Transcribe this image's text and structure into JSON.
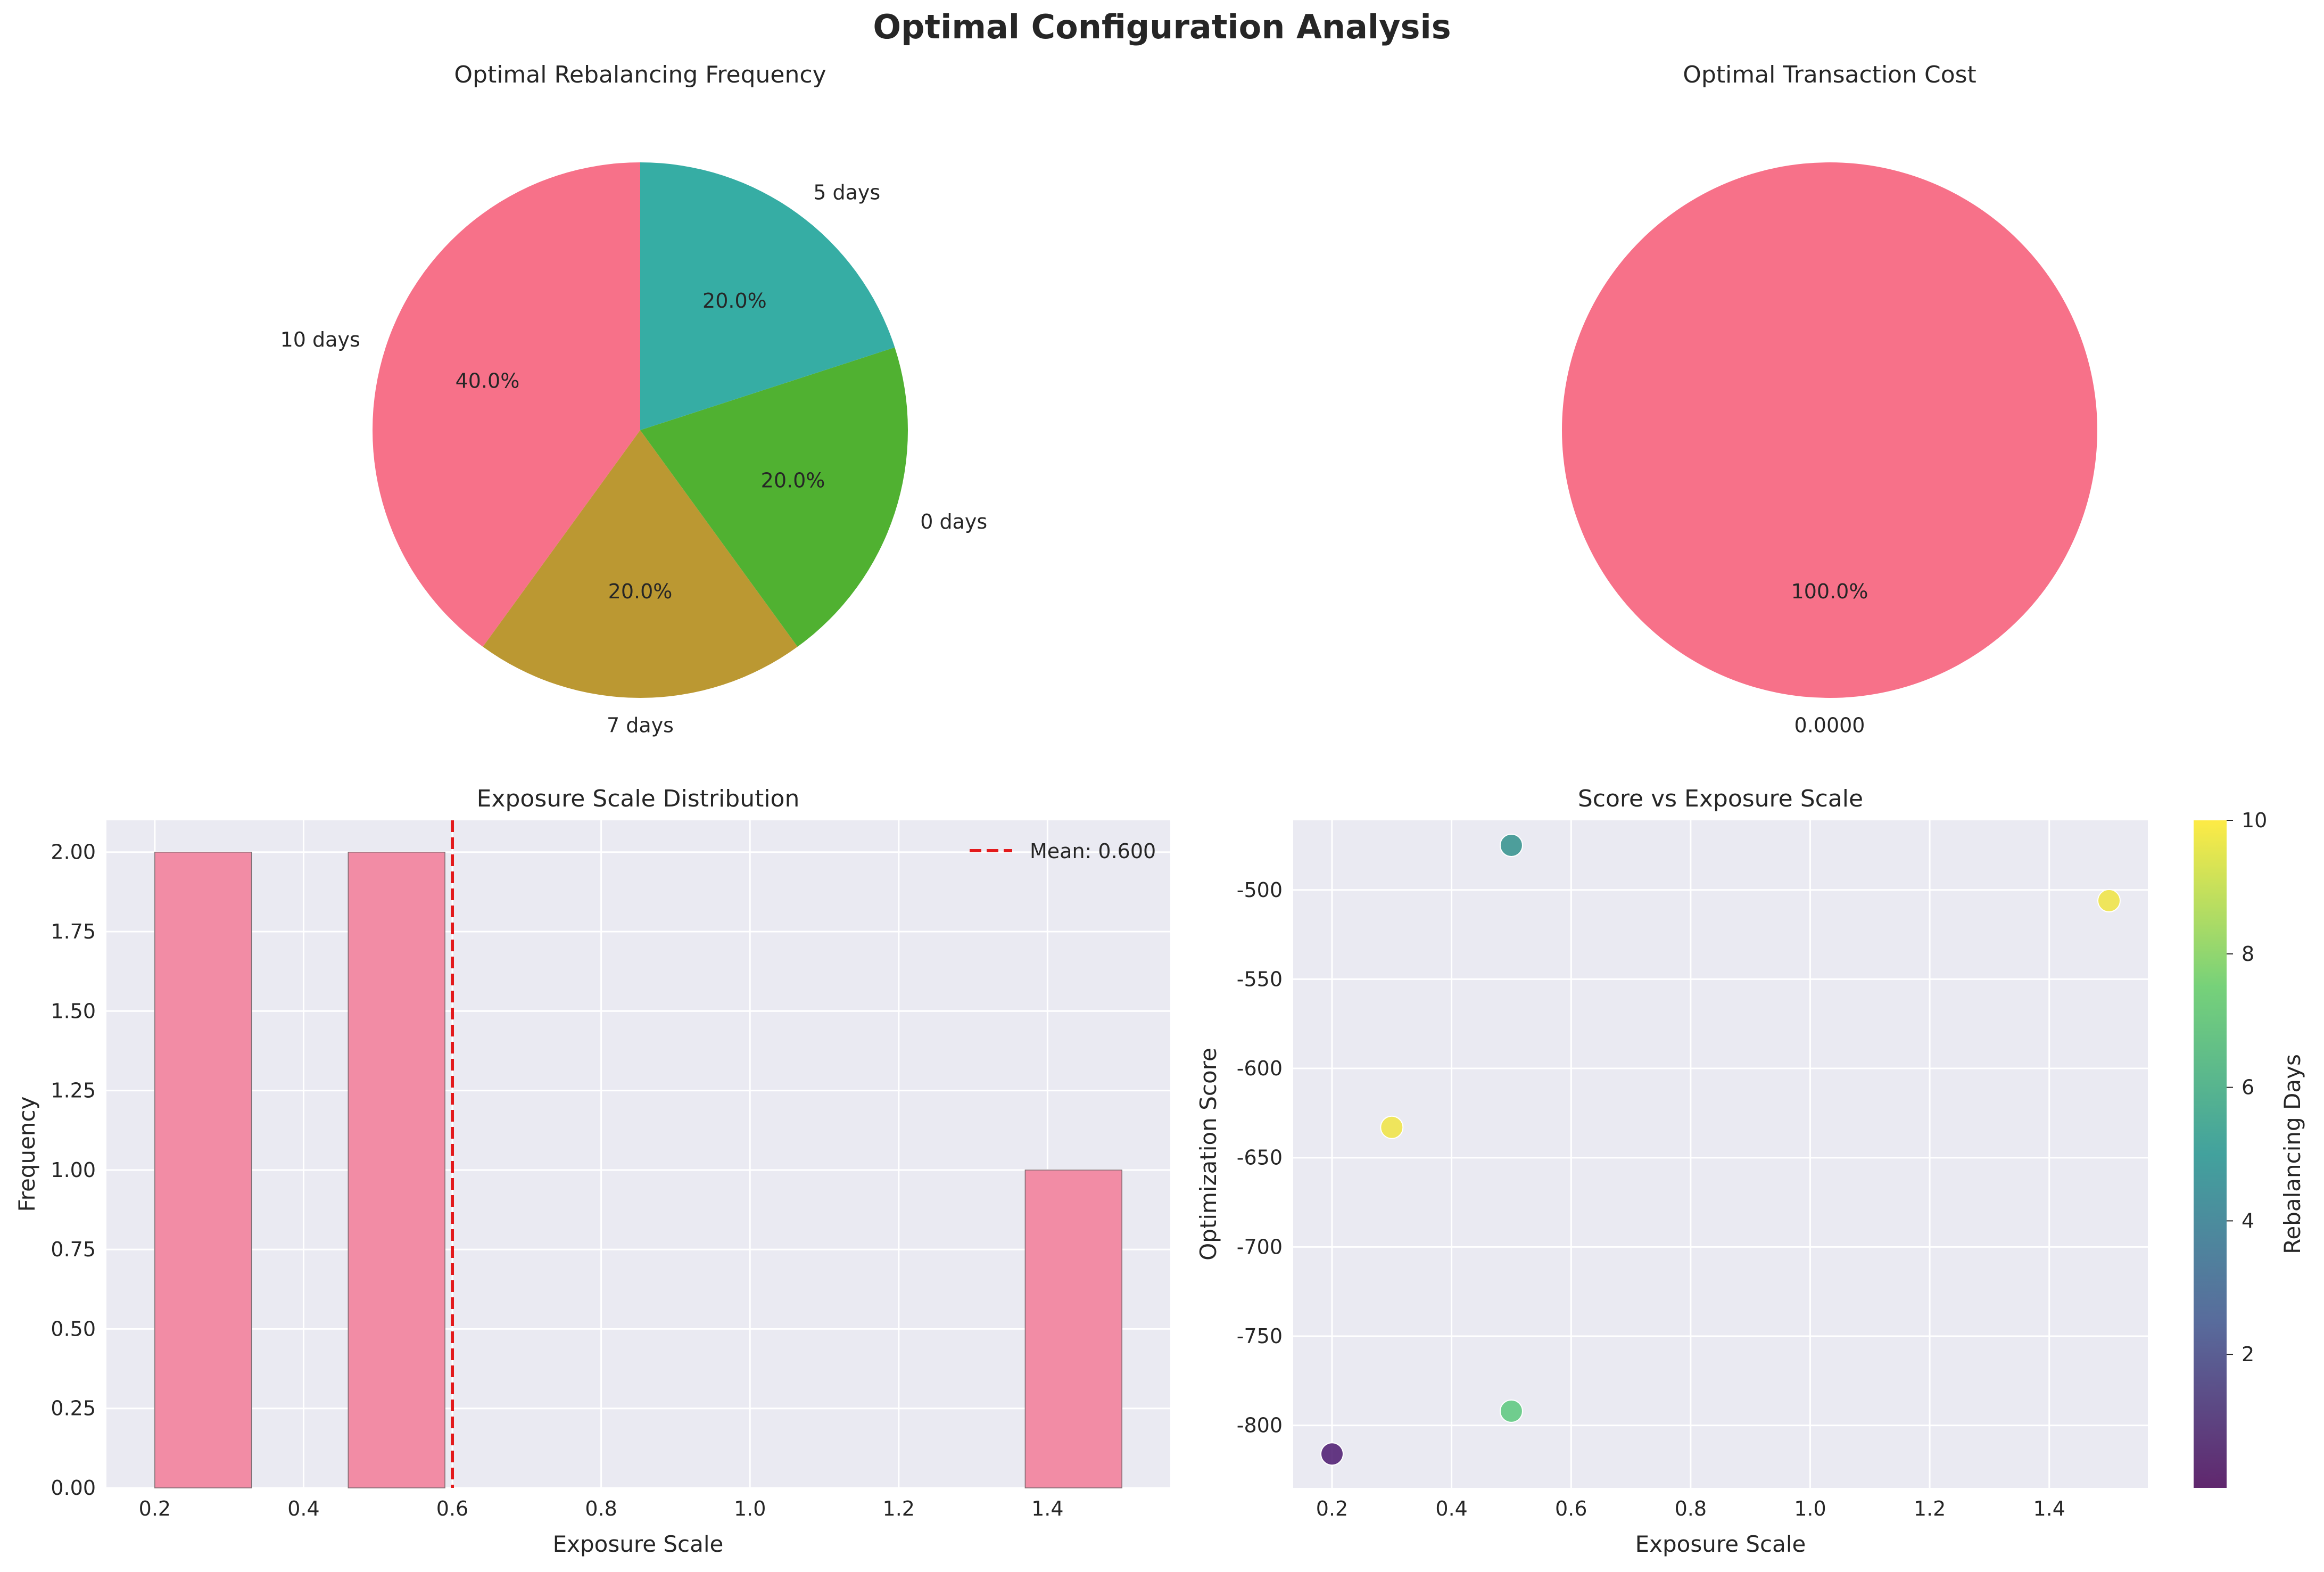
{
  "title": "Optimal Configuration Analysis",
  "chart_data": [
    {
      "type": "pie",
      "title": "Optimal Rebalancing Frequency",
      "slices": [
        {
          "label": "10 days",
          "value": 40.0,
          "pct_label": "40.0%",
          "color": "#f77189"
        },
        {
          "label": "7 days",
          "value": 20.0,
          "pct_label": "20.0%",
          "color": "#bb9832"
        },
        {
          "label": "0 days",
          "value": 20.0,
          "pct_label": "20.0%",
          "color": "#50b131"
        },
        {
          "label": "5 days",
          "value": 20.0,
          "pct_label": "20.0%",
          "color": "#36ada4"
        }
      ]
    },
    {
      "type": "pie",
      "title": "Optimal Transaction Cost",
      "slices": [
        {
          "label": "0.0000",
          "value": 100.0,
          "pct_label": "100.0%",
          "color": "#f77189"
        }
      ]
    },
    {
      "type": "bar",
      "title": "Exposure Scale Distribution",
      "xlabel": "Exposure Scale",
      "ylabel": "Frequency",
      "xlim": [
        0.135,
        1.565
      ],
      "ylim": [
        0,
        2.1
      ],
      "xticks": [
        "0.2",
        "0.4",
        "0.6",
        "0.8",
        "1.0",
        "1.2",
        "1.4"
      ],
      "yticks": [
        "0.00",
        "0.25",
        "0.50",
        "0.75",
        "1.00",
        "1.25",
        "1.50",
        "1.75",
        "2.00"
      ],
      "bins": [
        {
          "start": 0.2,
          "end": 0.33,
          "count": 2
        },
        {
          "start": 0.46,
          "end": 0.59,
          "count": 2
        },
        {
          "start": 1.37,
          "end": 1.5,
          "count": 1
        }
      ],
      "bar_color": "#f28ca5",
      "mean": {
        "value": 0.6,
        "label": "Mean: 0.600",
        "color": "#e31a1c"
      },
      "legend_position": "upper right",
      "grid": true
    },
    {
      "type": "scatter",
      "title": "Score vs Exposure Scale",
      "xlabel": "Exposure Scale",
      "ylabel": "Optimization Score",
      "colorbar_label": "Rebalancing Days",
      "xlim": [
        0.135,
        1.565
      ],
      "ylim": [
        -835,
        -461
      ],
      "xticks": [
        "0.2",
        "0.4",
        "0.6",
        "0.8",
        "1.0",
        "1.2",
        "1.4"
      ],
      "yticks": [
        "-500",
        "-550",
        "-600",
        "-650",
        "-700",
        "-750",
        "-800"
      ],
      "colorbar_ticks": [
        "2",
        "4",
        "6",
        "8",
        "10"
      ],
      "colorbar_range": [
        0,
        10
      ],
      "points": [
        {
          "x": 0.5,
          "y": -475,
          "days": 5,
          "color": "#31908c"
        },
        {
          "x": 1.5,
          "y": -506,
          "days": 10,
          "color": "#f0e442"
        },
        {
          "x": 0.3,
          "y": -633,
          "days": 10,
          "color": "#f0e442"
        },
        {
          "x": 0.5,
          "y": -792,
          "days": 7,
          "color": "#5ac87c"
        },
        {
          "x": 0.2,
          "y": -816,
          "days": 0,
          "color": "#4b176f"
        }
      ],
      "grid": true
    }
  ]
}
